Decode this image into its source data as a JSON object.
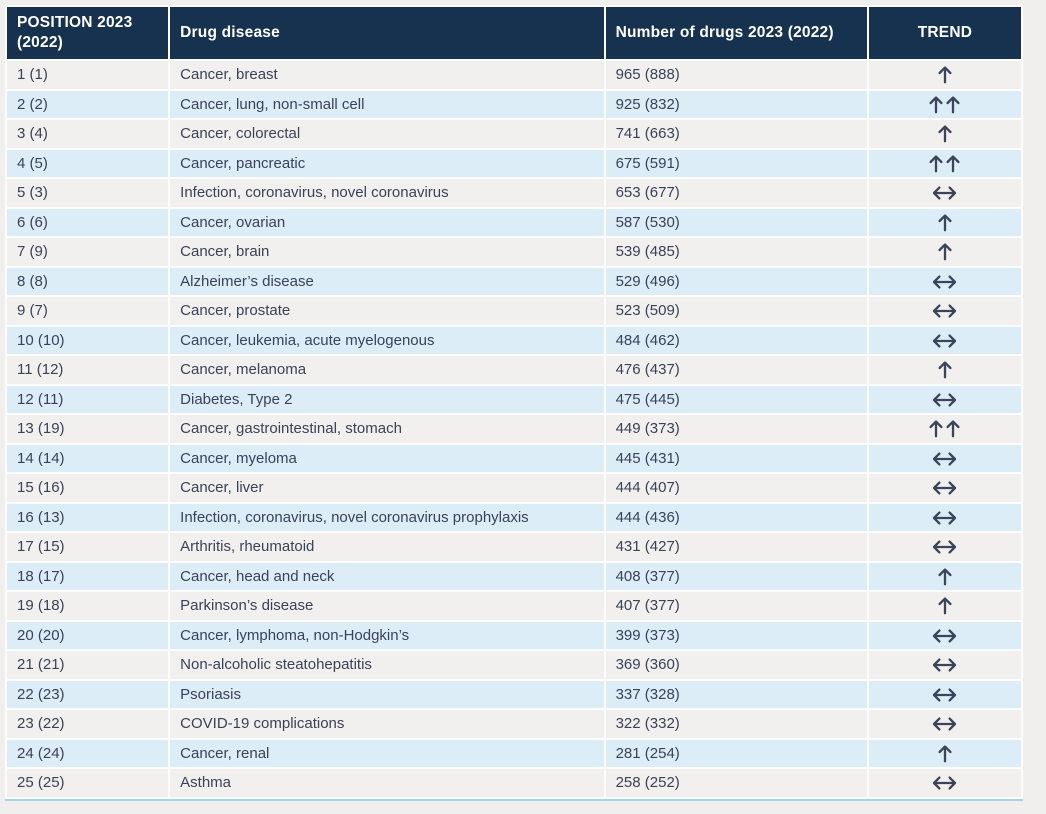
{
  "table": {
    "columns": [
      {
        "key": "position",
        "label": "POSITION 2023 (2022)"
      },
      {
        "key": "disease",
        "label": "Drug disease"
      },
      {
        "key": "drugs",
        "label": "Number of drugs 2023 (2022)"
      },
      {
        "key": "trend",
        "label": "TREND"
      }
    ],
    "trend_icons": {
      "up": "up-arrow-icon",
      "upup": "double-up-arrow-icon",
      "stable": "left-right-arrow-icon"
    },
    "rows": [
      {
        "position": "1 (1)",
        "disease": "Cancer, breast",
        "drugs": "965 (888)",
        "trend": "up"
      },
      {
        "position": "2 (2)",
        "disease": "Cancer, lung, non-small cell",
        "drugs": "925 (832)",
        "trend": "upup"
      },
      {
        "position": "3 (4)",
        "disease": "Cancer, colorectal",
        "drugs": "741 (663)",
        "trend": "up"
      },
      {
        "position": "4 (5)",
        "disease": "Cancer, pancreatic",
        "drugs": "675 (591)",
        "trend": "upup"
      },
      {
        "position": "5 (3)",
        "disease": "Infection, coronavirus, novel coronavirus",
        "drugs": "653 (677)",
        "trend": "stable"
      },
      {
        "position": "6 (6)",
        "disease": "Cancer, ovarian",
        "drugs": "587 (530)",
        "trend": "up"
      },
      {
        "position": "7 (9)",
        "disease": "Cancer, brain",
        "drugs": "539 (485)",
        "trend": "up"
      },
      {
        "position": "8 (8)",
        "disease": "Alzheimer’s disease",
        "drugs": "529 (496)",
        "trend": "stable"
      },
      {
        "position": "9 (7)",
        "disease": "Cancer, prostate",
        "drugs": "523 (509)",
        "trend": "stable"
      },
      {
        "position": "10 (10)",
        "disease": "Cancer, leukemia, acute myelogenous",
        "drugs": "484 (462)",
        "trend": "stable"
      },
      {
        "position": "11 (12)",
        "disease": "Cancer, melanoma",
        "drugs": "476 (437)",
        "trend": "up"
      },
      {
        "position": "12 (11)",
        "disease": "Diabetes, Type 2",
        "drugs": "475 (445)",
        "trend": "stable"
      },
      {
        "position": "13 (19)",
        "disease": "Cancer, gastrointestinal, stomach",
        "drugs": "449 (373)",
        "trend": "upup"
      },
      {
        "position": "14 (14)",
        "disease": "Cancer, myeloma",
        "drugs": "445 (431)",
        "trend": "stable"
      },
      {
        "position": "15 (16)",
        "disease": "Cancer, liver",
        "drugs": "444 (407)",
        "trend": "stable"
      },
      {
        "position": "16 (13)",
        "disease": "Infection, coronavirus, novel coronavirus prophylaxis",
        "drugs": "444 (436)",
        "trend": "stable"
      },
      {
        "position": "17 (15)",
        "disease": "Arthritis, rheumatoid",
        "drugs": "431 (427)",
        "trend": "stable"
      },
      {
        "position": "18 (17)",
        "disease": "Cancer, head and neck",
        "drugs": "408 (377)",
        "trend": "up"
      },
      {
        "position": "19 (18)",
        "disease": "Parkinson’s disease",
        "drugs": "407 (377)",
        "trend": "up"
      },
      {
        "position": "20 (20)",
        "disease": "Cancer, lymphoma, non-Hodgkin’s",
        "drugs": "399 (373)",
        "trend": "stable"
      },
      {
        "position": "21 (21)",
        "disease": "Non-alcoholic steatohepatitis",
        "drugs": "369 (360)",
        "trend": "stable"
      },
      {
        "position": "22 (23)",
        "disease": "Psoriasis",
        "drugs": "337 (328)",
        "trend": "stable"
      },
      {
        "position": "23 (22)",
        "disease": "COVID-19 complications",
        "drugs": "322 (332)",
        "trend": "stable"
      },
      {
        "position": "24 (24)",
        "disease": "Cancer, renal",
        "drugs": "281 (254)",
        "trend": "up"
      },
      {
        "position": "25 (25)",
        "disease": "Asthma",
        "drugs": "258 (252)",
        "trend": "stable"
      }
    ]
  },
  "colors": {
    "header_bg": "#17324e",
    "header_text": "#ffffff",
    "row_bg": "#f1f0ee",
    "row_alt_bg": "#dcedf8",
    "body_text": "#3a4258",
    "arrow": "#3b4459",
    "bottom_border": "#a9d2e8",
    "page_bg": "#f0efed"
  }
}
